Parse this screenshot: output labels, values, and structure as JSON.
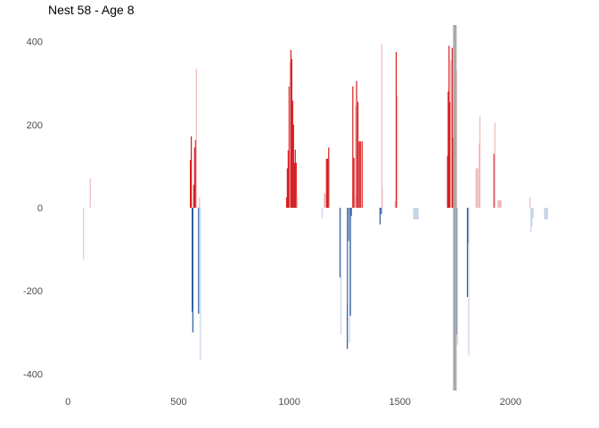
{
  "chart_data": {
    "type": "bar",
    "title": "Nest 58 - Age 8",
    "xlabel": "",
    "ylabel": "",
    "xlim": [
      -90,
      2190
    ],
    "ylim": [
      -440,
      440
    ],
    "x_ticks": [
      0,
      500,
      1000,
      1500,
      2000
    ],
    "y_ticks": [
      400,
      200,
      0,
      -200,
      -400
    ],
    "grid": false,
    "legend": "none",
    "colors": {
      "positive_strong": "#d7191c",
      "positive_faint": "#f0b8b8",
      "negative_strong": "#2c5aa0",
      "negative_faint": "#c6d4e6",
      "marker": "#aaaaaa",
      "tick_text": "#4d4d4d"
    },
    "marker_x": 1748,
    "bars": [
      {
        "x": 70,
        "y": -125,
        "style": "faint"
      },
      {
        "x": 100,
        "y": 70,
        "style": "faint"
      },
      {
        "x": 553,
        "y": 115,
        "style": "strong"
      },
      {
        "x": 557,
        "y": 172,
        "style": "strong"
      },
      {
        "x": 561,
        "y": -250,
        "style": "strong"
      },
      {
        "x": 564,
        "y": -300,
        "style": "strong"
      },
      {
        "x": 568,
        "y": 55,
        "style": "strong"
      },
      {
        "x": 572,
        "y": 145,
        "style": "strong"
      },
      {
        "x": 576,
        "y": 163,
        "style": "strong"
      },
      {
        "x": 580,
        "y": 335,
        "style": "faint"
      },
      {
        "x": 590,
        "y": -255,
        "style": "strong"
      },
      {
        "x": 594,
        "y": 25,
        "style": "faint"
      },
      {
        "x": 598,
        "y": -368,
        "style": "faint"
      },
      {
        "x": 988,
        "y": 25,
        "style": "strong"
      },
      {
        "x": 991,
        "y": 95,
        "style": "strong"
      },
      {
        "x": 995,
        "y": 138,
        "style": "strong"
      },
      {
        "x": 999,
        "y": 292,
        "style": "strong"
      },
      {
        "x": 1003,
        "y": 350,
        "style": "faint"
      },
      {
        "x": 1007,
        "y": 380,
        "style": "strong"
      },
      {
        "x": 1011,
        "y": 358,
        "style": "strong"
      },
      {
        "x": 1015,
        "y": 258,
        "style": "strong"
      },
      {
        "x": 1019,
        "y": 200,
        "style": "strong"
      },
      {
        "x": 1023,
        "y": 108,
        "style": "strong"
      },
      {
        "x": 1027,
        "y": 140,
        "style": "strong"
      },
      {
        "x": 1031,
        "y": 108,
        "style": "strong"
      },
      {
        "x": 1035,
        "y": 30,
        "style": "faint"
      },
      {
        "x": 1148,
        "y": -25,
        "style": "faint"
      },
      {
        "x": 1158,
        "y": 35,
        "style": "faint"
      },
      {
        "x": 1162,
        "y": 35,
        "style": "faint"
      },
      {
        "x": 1168,
        "y": 118,
        "style": "strong"
      },
      {
        "x": 1173,
        "y": 118,
        "style": "strong"
      },
      {
        "x": 1178,
        "y": 145,
        "style": "strong"
      },
      {
        "x": 1229,
        "y": -168,
        "style": "strong"
      },
      {
        "x": 1233,
        "y": -305,
        "style": "faint"
      },
      {
        "x": 1262,
        "y": -340,
        "style": "strong"
      },
      {
        "x": 1265,
        "y": -235,
        "style": "faint"
      },
      {
        "x": 1268,
        "y": -80,
        "style": "strong"
      },
      {
        "x": 1272,
        "y": -325,
        "style": "faint"
      },
      {
        "x": 1276,
        "y": -260,
        "style": "strong"
      },
      {
        "x": 1280,
        "y": -20,
        "style": "strong"
      },
      {
        "x": 1287,
        "y": 292,
        "style": "strong"
      },
      {
        "x": 1292,
        "y": 120,
        "style": "strong"
      },
      {
        "x": 1296,
        "y": 30,
        "style": "faint"
      },
      {
        "x": 1300,
        "y": 245,
        "style": "faint"
      },
      {
        "x": 1304,
        "y": 305,
        "style": "strong"
      },
      {
        "x": 1310,
        "y": 255,
        "style": "strong"
      },
      {
        "x": 1316,
        "y": 160,
        "style": "strong"
      },
      {
        "x": 1321,
        "y": 160,
        "style": "strong"
      },
      {
        "x": 1329,
        "y": 160,
        "style": "strong"
      },
      {
        "x": 1410,
        "y": -40,
        "style": "strong"
      },
      {
        "x": 1416,
        "y": -15,
        "style": "strong"
      },
      {
        "x": 1418,
        "y": 395,
        "style": "faint"
      },
      {
        "x": 1420,
        "y": 48,
        "style": "faint"
      },
      {
        "x": 1478,
        "y": 15,
        "style": "faint"
      },
      {
        "x": 1483,
        "y": 375,
        "style": "strong"
      },
      {
        "x": 1488,
        "y": 270,
        "style": "faint"
      },
      {
        "x": 1572,
        "y": -28,
        "style": "faint",
        "width": 25
      },
      {
        "x": 1715,
        "y": 125,
        "style": "strong"
      },
      {
        "x": 1718,
        "y": 280,
        "style": "strong"
      },
      {
        "x": 1722,
        "y": 390,
        "style": "strong"
      },
      {
        "x": 1726,
        "y": 255,
        "style": "strong"
      },
      {
        "x": 1730,
        "y": 355,
        "style": "faint"
      },
      {
        "x": 1736,
        "y": 385,
        "style": "strong"
      },
      {
        "x": 1740,
        "y": 170,
        "style": "strong"
      },
      {
        "x": 1744,
        "y": 205,
        "style": "faint"
      },
      {
        "x": 1750,
        "y": 360,
        "style": "faint"
      },
      {
        "x": 1754,
        "y": 330,
        "style": "strong"
      },
      {
        "x": 1756,
        "y": -305,
        "style": "strong"
      },
      {
        "x": 1760,
        "y": -330,
        "style": "faint"
      },
      {
        "x": 1805,
        "y": -215,
        "style": "strong"
      },
      {
        "x": 1808,
        "y": -85,
        "style": "strong"
      },
      {
        "x": 1811,
        "y": -355,
        "style": "faint"
      },
      {
        "x": 1848,
        "y": 95,
        "style": "faint",
        "width": 12
      },
      {
        "x": 1858,
        "y": 155,
        "style": "faint"
      },
      {
        "x": 1861,
        "y": 220,
        "style": "faint"
      },
      {
        "x": 1925,
        "y": 130,
        "style": "strong"
      },
      {
        "x": 1929,
        "y": 205,
        "style": "faint"
      },
      {
        "x": 1950,
        "y": 18,
        "style": "faint",
        "width": 18
      },
      {
        "x": 2088,
        "y": 25,
        "style": "faint"
      },
      {
        "x": 2092,
        "y": -58,
        "style": "faint"
      },
      {
        "x": 2096,
        "y": -45,
        "style": "faint"
      },
      {
        "x": 2100,
        "y": -25,
        "style": "faint",
        "width": 8
      },
      {
        "x": 2160,
        "y": -28,
        "style": "faint",
        "width": 18
      }
    ]
  }
}
